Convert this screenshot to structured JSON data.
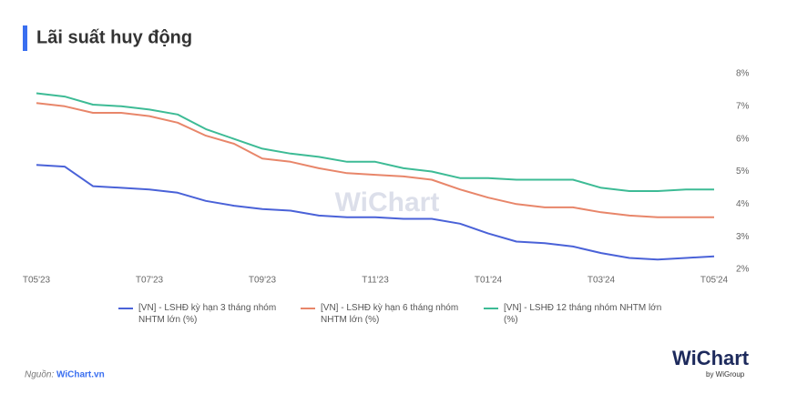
{
  "chart_data": {
    "type": "line",
    "title": "Lãi suất huy động",
    "watermark": "WiChart",
    "categories": [
      "T05'23",
      null,
      null,
      null,
      "T07'23",
      null,
      null,
      null,
      "T09'23",
      null,
      null,
      null,
      "T11'23",
      null,
      null,
      null,
      "T01'24",
      null,
      null,
      null,
      "T03'24",
      null,
      null,
      null,
      "T05'24"
    ],
    "series": [
      {
        "name": "[VN] - LSHĐ kỳ hạn 3 tháng nhóm NHTM lớn (%)",
        "color": "#4a62d8",
        "values": [
          5.2,
          5.15,
          4.55,
          4.5,
          4.45,
          4.35,
          4.1,
          3.95,
          3.85,
          3.8,
          3.65,
          3.6,
          3.6,
          3.55,
          3.55,
          3.4,
          3.1,
          2.85,
          2.8,
          2.7,
          2.5,
          2.35,
          2.3,
          2.35,
          2.4
        ]
      },
      {
        "name": "[VN] - LSHĐ kỳ hạn 6 tháng nhóm NHTM lớn (%)",
        "color": "#e8866a",
        "values": [
          7.1,
          7.0,
          6.8,
          6.8,
          6.7,
          6.5,
          6.1,
          5.85,
          5.4,
          5.3,
          5.1,
          4.95,
          4.9,
          4.85,
          4.75,
          4.45,
          4.2,
          4.0,
          3.9,
          3.9,
          3.75,
          3.65,
          3.6,
          3.6,
          3.6
        ]
      },
      {
        "name": "[VN] - LSHĐ 12 tháng nhóm NHTM lớn (%)",
        "color": "#3dbb95",
        "values": [
          7.4,
          7.3,
          7.05,
          7.0,
          6.9,
          6.75,
          6.3,
          6.0,
          5.7,
          5.55,
          5.45,
          5.3,
          5.3,
          5.1,
          5.0,
          4.8,
          4.8,
          4.75,
          4.75,
          4.75,
          4.5,
          4.4,
          4.4,
          4.45,
          4.45
        ]
      }
    ],
    "ylim": [
      2,
      8
    ],
    "yticks": [
      {
        "value": 2,
        "label": "2%"
      },
      {
        "value": 3,
        "label": "3%"
      },
      {
        "value": 4,
        "label": "4%"
      },
      {
        "value": 5,
        "label": "5%"
      },
      {
        "value": 6,
        "label": "6%"
      },
      {
        "value": 7,
        "label": "7%"
      },
      {
        "value": 8,
        "label": "8%"
      }
    ],
    "y_axis_side": "right",
    "grid": false,
    "legend": "bottom"
  },
  "source": {
    "label": "Nguồn:",
    "name": "WiChart.vn"
  },
  "logo": {
    "name": "WiChart",
    "tagline": "by WiGroup"
  }
}
